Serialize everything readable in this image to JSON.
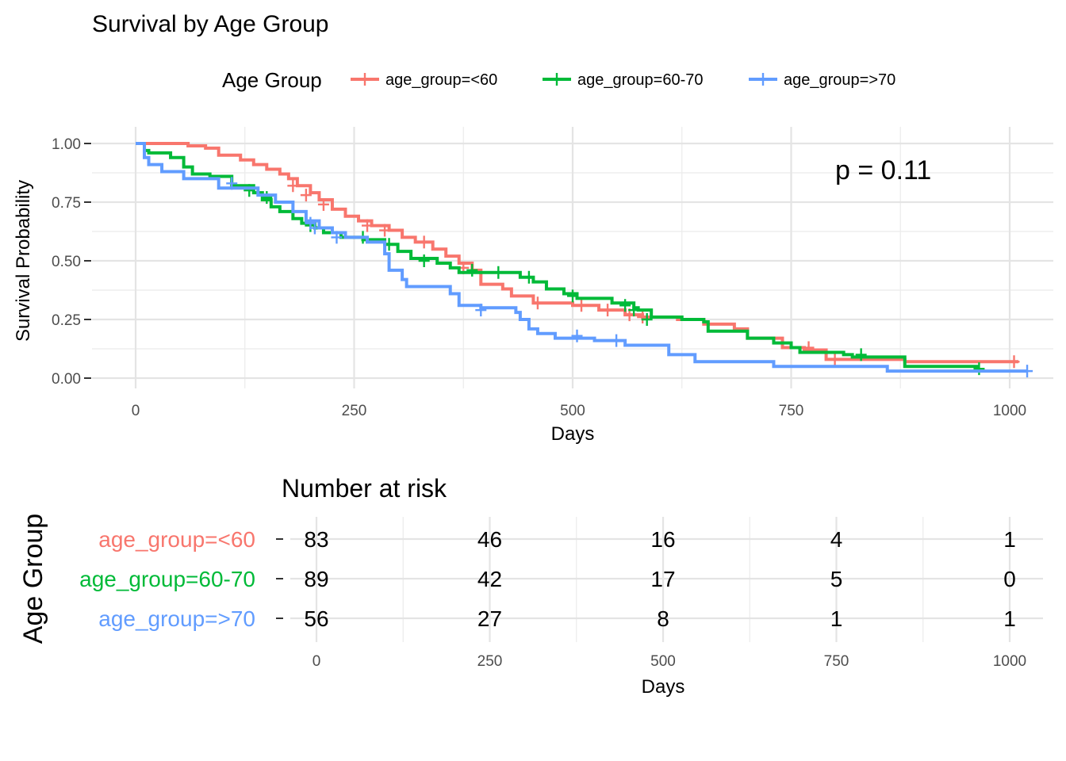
{
  "chart_data": [
    {
      "type": "line",
      "subtype": "kaplan-meier-step",
      "title": "Survival by Age Group",
      "xlabel": "Days",
      "ylabel": "Survival Probability",
      "xlim": [
        0,
        1000
      ],
      "ylim": [
        0,
        1
      ],
      "x_ticks": [
        0,
        250,
        500,
        750,
        1000
      ],
      "y_ticks": [
        0,
        0.25,
        0.5,
        0.75,
        1.0
      ],
      "x_tick_labels": [
        "0",
        "250",
        "500",
        "750",
        "1000"
      ],
      "y_tick_labels": [
        "0.00",
        "0.25",
        "0.50",
        "0.75",
        "1.00"
      ],
      "grid": true,
      "legend": {
        "title": "Age Group",
        "position": "top"
      },
      "annotation": "p = 0.11",
      "series": [
        {
          "name": "age_group=<60",
          "color": "#F8766D",
          "steps": [
            [
              0,
              1.0
            ],
            [
              60,
              0.99
            ],
            [
              80,
              0.98
            ],
            [
              95,
              0.95
            ],
            [
              120,
              0.93
            ],
            [
              135,
              0.91
            ],
            [
              150,
              0.89
            ],
            [
              165,
              0.87
            ],
            [
              175,
              0.85
            ],
            [
              185,
              0.82
            ],
            [
              200,
              0.79
            ],
            [
              210,
              0.76
            ],
            [
              225,
              0.72
            ],
            [
              240,
              0.69
            ],
            [
              255,
              0.67
            ],
            [
              270,
              0.65
            ],
            [
              290,
              0.63
            ],
            [
              305,
              0.6
            ],
            [
              320,
              0.58
            ],
            [
              340,
              0.55
            ],
            [
              355,
              0.52
            ],
            [
              370,
              0.49
            ],
            [
              385,
              0.46
            ],
            [
              395,
              0.4
            ],
            [
              420,
              0.38
            ],
            [
              430,
              0.35
            ],
            [
              455,
              0.32
            ],
            [
              500,
              0.31
            ],
            [
              530,
              0.29
            ],
            [
              560,
              0.27
            ],
            [
              580,
              0.26
            ],
            [
              620,
              0.25
            ],
            [
              650,
              0.23
            ],
            [
              685,
              0.21
            ],
            [
              700,
              0.17
            ],
            [
              740,
              0.13
            ],
            [
              765,
              0.12
            ],
            [
              790,
              0.08
            ],
            [
              880,
              0.07
            ]
          ],
          "end": 1010,
          "censor": [
            [
              180,
              0.82
            ],
            [
              195,
              0.78
            ],
            [
              215,
              0.74
            ],
            [
              265,
              0.65
            ],
            [
              285,
              0.63
            ],
            [
              330,
              0.58
            ],
            [
              375,
              0.47
            ],
            [
              460,
              0.32
            ],
            [
              510,
              0.31
            ],
            [
              540,
              0.29
            ],
            [
              565,
              0.27
            ],
            [
              580,
              0.26
            ],
            [
              770,
              0.13
            ],
            [
              800,
              0.08
            ],
            [
              1005,
              0.07
            ]
          ]
        },
        {
          "name": "age_group=60-70",
          "color": "#00BA38",
          "steps": [
            [
              0,
              1.0
            ],
            [
              10,
              0.97
            ],
            [
              15,
              0.96
            ],
            [
              40,
              0.94
            ],
            [
              55,
              0.9
            ],
            [
              65,
              0.87
            ],
            [
              85,
              0.86
            ],
            [
              110,
              0.82
            ],
            [
              135,
              0.79
            ],
            [
              145,
              0.76
            ],
            [
              155,
              0.73
            ],
            [
              165,
              0.71
            ],
            [
              180,
              0.68
            ],
            [
              190,
              0.66
            ],
            [
              205,
              0.64
            ],
            [
              215,
              0.62
            ],
            [
              235,
              0.6
            ],
            [
              260,
              0.59
            ],
            [
              285,
              0.57
            ],
            [
              300,
              0.54
            ],
            [
              315,
              0.51
            ],
            [
              345,
              0.49
            ],
            [
              360,
              0.47
            ],
            [
              370,
              0.45
            ],
            [
              440,
              0.43
            ],
            [
              455,
              0.41
            ],
            [
              470,
              0.38
            ],
            [
              490,
              0.36
            ],
            [
              505,
              0.34
            ],
            [
              545,
              0.32
            ],
            [
              570,
              0.3
            ],
            [
              575,
              0.29
            ],
            [
              590,
              0.26
            ],
            [
              625,
              0.25
            ],
            [
              650,
              0.24
            ],
            [
              655,
              0.2
            ],
            [
              700,
              0.17
            ],
            [
              730,
              0.15
            ],
            [
              750,
              0.13
            ],
            [
              760,
              0.11
            ],
            [
              810,
              0.1
            ],
            [
              820,
              0.09
            ],
            [
              880,
              0.05
            ]
          ],
          "end": 965,
          "censor": [
            [
              130,
              0.8
            ],
            [
              150,
              0.77
            ],
            [
              200,
              0.65
            ],
            [
              260,
              0.6
            ],
            [
              290,
              0.57
            ],
            [
              330,
              0.5
            ],
            [
              385,
              0.46
            ],
            [
              415,
              0.45
            ],
            [
              450,
              0.43
            ],
            [
              500,
              0.35
            ],
            [
              560,
              0.31
            ],
            [
              570,
              0.29
            ],
            [
              585,
              0.25
            ],
            [
              830,
              0.1
            ],
            [
              965,
              0.04
            ]
          ]
        },
        {
          "name": "age_group=>70",
          "color": "#619CFF",
          "steps": [
            [
              0,
              1.0
            ],
            [
              10,
              0.94
            ],
            [
              15,
              0.91
            ],
            [
              30,
              0.88
            ],
            [
              55,
              0.85
            ],
            [
              95,
              0.81
            ],
            [
              140,
              0.78
            ],
            [
              160,
              0.75
            ],
            [
              180,
              0.71
            ],
            [
              195,
              0.67
            ],
            [
              210,
              0.64
            ],
            [
              225,
              0.62
            ],
            [
              240,
              0.6
            ],
            [
              265,
              0.58
            ],
            [
              285,
              0.53
            ],
            [
              290,
              0.46
            ],
            [
              305,
              0.42
            ],
            [
              310,
              0.39
            ],
            [
              360,
              0.36
            ],
            [
              370,
              0.31
            ],
            [
              395,
              0.3
            ],
            [
              435,
              0.28
            ],
            [
              440,
              0.25
            ],
            [
              450,
              0.21
            ],
            [
              460,
              0.19
            ],
            [
              480,
              0.17
            ],
            [
              525,
              0.16
            ],
            [
              560,
              0.14
            ],
            [
              610,
              0.1
            ],
            [
              640,
              0.07
            ],
            [
              730,
              0.05
            ],
            [
              860,
              0.03
            ]
          ],
          "end": 1020,
          "censor": [
            [
              110,
              0.83
            ],
            [
              200,
              0.66
            ],
            [
              205,
              0.64
            ],
            [
              230,
              0.6
            ],
            [
              395,
              0.29
            ],
            [
              505,
              0.18
            ],
            [
              550,
              0.16
            ],
            [
              1020,
              0.03
            ]
          ]
        }
      ]
    },
    {
      "type": "table",
      "title": "Number at risk",
      "xlabel": "Days",
      "ylabel": "Age Group",
      "x_ticks": [
        0,
        250,
        500,
        750,
        1000
      ],
      "x_tick_labels": [
        "0",
        "250",
        "500",
        "750",
        "1000"
      ],
      "rows": [
        {
          "name": "age_group=<60",
          "color": "#F8766D",
          "values": [
            83,
            46,
            16,
            4,
            1
          ]
        },
        {
          "name": "age_group=60-70",
          "color": "#00BA38",
          "values": [
            89,
            42,
            17,
            5,
            0
          ]
        },
        {
          "name": "age_group=>70",
          "color": "#619CFF",
          "values": [
            56,
            27,
            8,
            1,
            1
          ]
        }
      ]
    }
  ]
}
